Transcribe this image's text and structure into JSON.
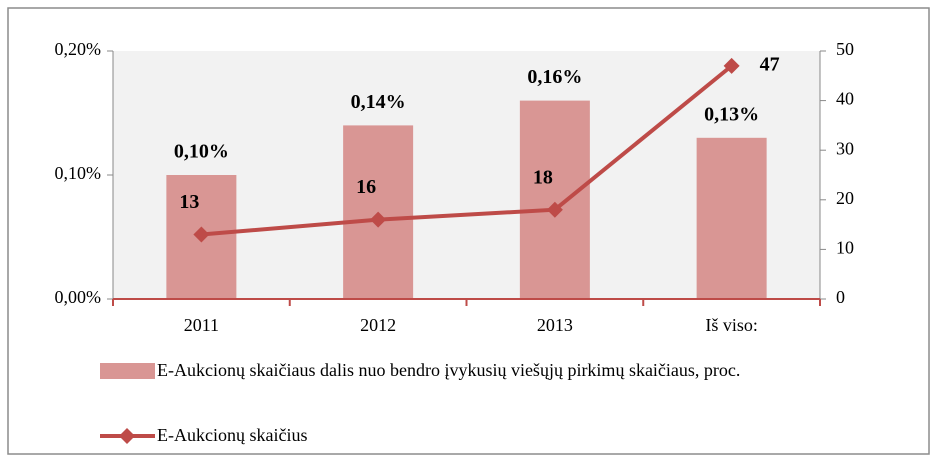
{
  "chart_data": {
    "type": "bar_line",
    "categories": [
      "2011",
      "2012",
      "2013",
      "Iš viso:"
    ],
    "series": [
      {
        "name": "E-Aukcionų skaičiaus dalis nuo bendro įvykusių viešųjų pirkimų skaičiaus, proc.",
        "type": "bar",
        "color": "#d99694",
        "values": [
          0.1,
          0.14,
          0.16,
          0.13
        ],
        "value_labels": [
          "0,10%",
          "0,14%",
          "0,16%",
          "0,13%"
        ]
      },
      {
        "name": "E-Aukcionų skaičius",
        "type": "line",
        "axis": "y2",
        "color": "#be4b48",
        "values": [
          13,
          16,
          18,
          47
        ]
      }
    ],
    "ylim": [
      0,
      0.2
    ],
    "yticks": [
      {
        "value": 0,
        "label": "0,00%"
      },
      {
        "value": 0.1,
        "label": "0,10%"
      },
      {
        "value": 0.2,
        "label": "0,20%"
      }
    ],
    "y2lim": [
      0,
      50
    ],
    "y2ticks": [
      0,
      10,
      20,
      30,
      40,
      50
    ],
    "legend": "bottom"
  }
}
